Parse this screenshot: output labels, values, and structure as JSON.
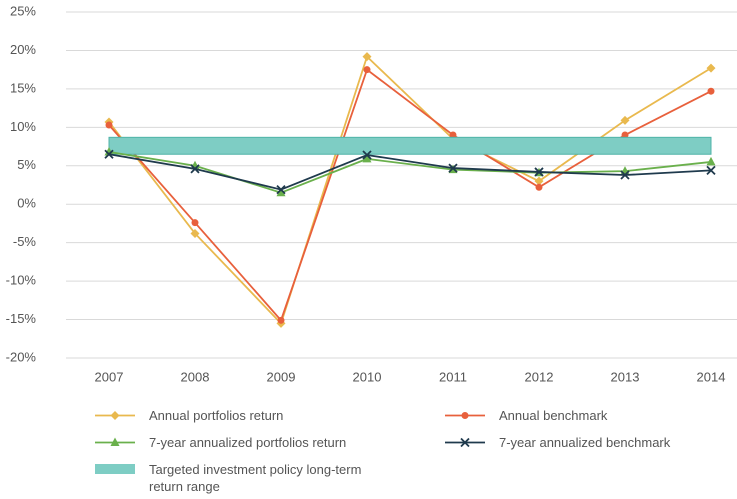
{
  "chart_data": {
    "type": "line",
    "categories": [
      "2007",
      "2008",
      "2009",
      "2010",
      "2011",
      "2012",
      "2013",
      "2014"
    ],
    "series": [
      {
        "name": "Annual portfolios return",
        "color": "#e9b94e",
        "marker": "diamond",
        "values": [
          10.7,
          -3.8,
          -15.5,
          19.2,
          8.5,
          3.0,
          10.9,
          17.7
        ]
      },
      {
        "name": "Annual benchmark",
        "color": "#e8603c",
        "marker": "circle",
        "values": [
          10.3,
          -2.4,
          -15.1,
          17.5,
          9.0,
          2.2,
          9.0,
          14.7
        ]
      },
      {
        "name": "7-year annualized portfolios return",
        "color": "#6ab04c",
        "marker": "triangle",
        "values": [
          6.8,
          5.0,
          1.5,
          5.9,
          4.5,
          4.1,
          4.3,
          5.5
        ]
      },
      {
        "name": "7-year annualized benchmark",
        "color": "#1f3a4d",
        "marker": "x",
        "values": [
          6.5,
          4.6,
          1.9,
          6.4,
          4.7,
          4.2,
          3.8,
          4.4
        ]
      }
    ],
    "target_band": {
      "name": "Targeted investment policy long-term return range",
      "color": "#7ecdc4",
      "range": [
        6.5,
        8.7
      ]
    },
    "ylim": [
      -20,
      25
    ],
    "yticks": [
      {
        "value": -20,
        "label": "-20%"
      },
      {
        "value": -15,
        "label": "-15%"
      },
      {
        "value": -10,
        "label": "-10%"
      },
      {
        "value": -5,
        "label": "-5%"
      },
      {
        "value": 0,
        "label": "0%"
      },
      {
        "value": 5,
        "label": "5%"
      },
      {
        "value": 10,
        "label": "10%"
      },
      {
        "value": 15,
        "label": "15%"
      },
      {
        "value": 20,
        "label": "20%"
      },
      {
        "value": 25,
        "label": "25%"
      }
    ],
    "grid": true
  }
}
